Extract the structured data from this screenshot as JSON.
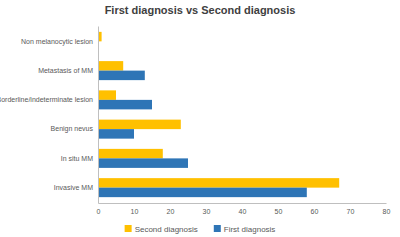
{
  "chart_data": {
    "type": "bar",
    "title": "First diagnosis vs Second diagnosis",
    "orientation": "horizontal",
    "categories": [
      "Non melanocytic lesion",
      "Metastasis of MM",
      "Borderline/indeterminate lesion",
      "Benign nevus",
      "In situ MM",
      "Invasive MM"
    ],
    "series": [
      {
        "name": "Second diagnosis",
        "color": "#FFC000",
        "values": [
          1,
          7,
          5,
          23,
          18,
          67
        ]
      },
      {
        "name": "First diagnosis",
        "color": "#2E75B6",
        "values": [
          0,
          13,
          15,
          10,
          25,
          58
        ]
      }
    ],
    "xlim": [
      0,
      80
    ],
    "xticks": [
      0,
      10,
      20,
      30,
      40,
      50,
      60,
      70,
      80
    ],
    "grid": false,
    "legend": "bottom"
  }
}
